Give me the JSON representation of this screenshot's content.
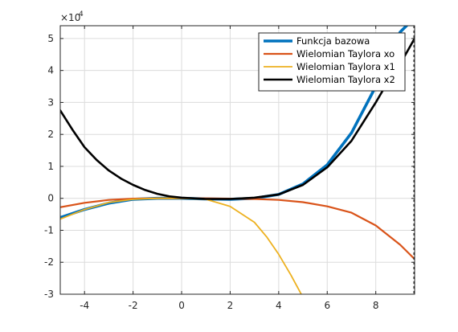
{
  "chart_data": {
    "type": "line",
    "title": "",
    "xlabel": "",
    "ylabel": "",
    "xlim": [
      -5,
      9.6
    ],
    "ylim": [
      -3,
      5.4
    ],
    "y_multiplier_label": "×10",
    "y_multiplier_exponent": "4",
    "x_ticks": [
      -4,
      -2,
      0,
      2,
      4,
      6,
      8
    ],
    "x_tick_labels": [
      "-4",
      "-2",
      "0",
      "2",
      "4",
      "6",
      "8"
    ],
    "y_ticks": [
      -3,
      -2,
      -1,
      0,
      1,
      2,
      3,
      4,
      5
    ],
    "y_tick_labels": [
      "-3",
      "-2",
      "-1",
      "0",
      "1",
      "2",
      "3",
      "4",
      "5"
    ],
    "grid": true,
    "legend_position": "top-right",
    "series": [
      {
        "name": "Funkcja bazowa",
        "color": "#0072BD",
        "x": [
          -5,
          -4,
          -3,
          -2,
          -1,
          0,
          1,
          2,
          3,
          4,
          5,
          6,
          7,
          8,
          8.5,
          9,
          9.4
        ],
        "y": [
          -0.6,
          -0.35,
          -0.15,
          -0.03,
          0.0,
          0.0,
          -0.02,
          -0.03,
          0.0,
          0.12,
          0.45,
          1.05,
          2.05,
          3.5,
          4.3,
          5.2,
          5.5
        ]
      },
      {
        "name": "Wielomian Taylora xo",
        "color": "#D95319",
        "x": [
          -5,
          -4,
          -3,
          -2,
          -1,
          0,
          1,
          2,
          3,
          4,
          5,
          6,
          7,
          8,
          9,
          9.6
        ],
        "y": [
          -0.28,
          -0.14,
          -0.05,
          -0.01,
          0.0,
          0.0,
          0.0,
          -0.01,
          -0.02,
          -0.05,
          -0.12,
          -0.25,
          -0.45,
          -0.85,
          -1.45,
          -1.9
        ]
      },
      {
        "name": "Wielomian Taylora x1",
        "color": "#EDB120",
        "x": [
          -5,
          -4,
          -3,
          -2,
          -1,
          0,
          1,
          2,
          3,
          3.5,
          4,
          4.5,
          5
        ],
        "y": [
          -0.65,
          -0.35,
          -0.13,
          -0.03,
          0.0,
          0.0,
          -0.03,
          -0.25,
          -0.75,
          -1.2,
          -1.75,
          -2.4,
          -3.1
        ]
      },
      {
        "name": "Wielomian Taylora x2",
        "color": "#000000",
        "x": [
          -5,
          -4.5,
          -4,
          -3.5,
          -3,
          -2.5,
          -2,
          -1.5,
          -1,
          -0.5,
          0,
          1,
          2,
          3,
          4,
          5,
          6,
          7,
          8,
          8.5,
          9,
          9.6
        ],
        "y": [
          2.75,
          2.15,
          1.6,
          1.2,
          0.87,
          0.62,
          0.42,
          0.26,
          0.14,
          0.06,
          0.02,
          -0.02,
          -0.02,
          0.02,
          0.12,
          0.42,
          0.97,
          1.8,
          3.0,
          3.65,
          4.2,
          5.0
        ]
      }
    ]
  }
}
